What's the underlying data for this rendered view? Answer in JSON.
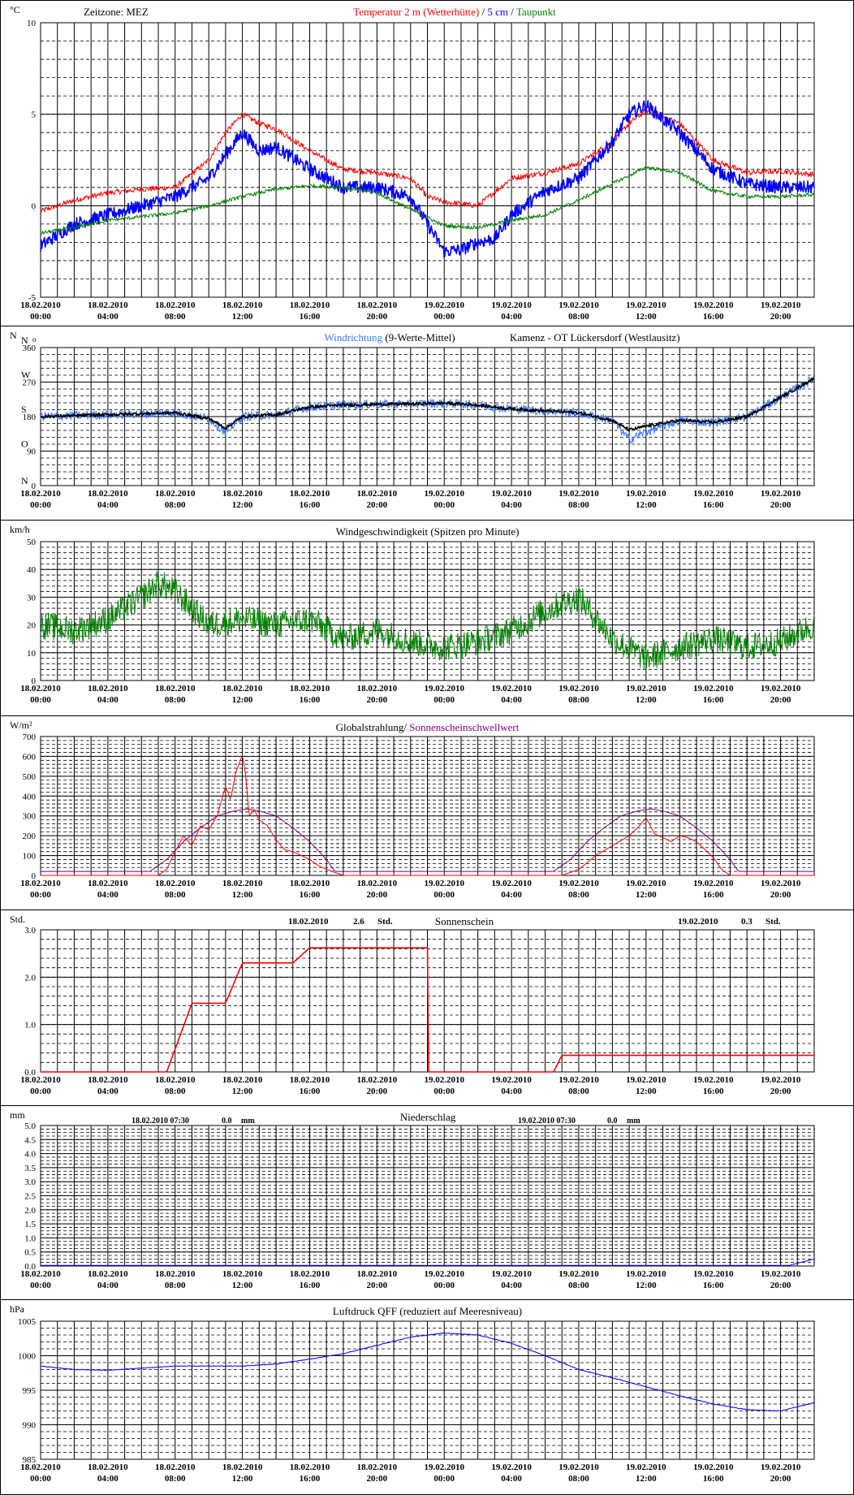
{
  "colors": {
    "red": "#ff0000",
    "blue": "#0000ff",
    "lightblue": "#3a78ff",
    "green": "#008000",
    "purple": "#800080",
    "black": "#000000"
  },
  "x_ticks": [
    {
      "d": "18.02.2010",
      "t": "00:00"
    },
    {
      "d": "18.02.2010",
      "t": "04:00"
    },
    {
      "d": "18.02.2010",
      "t": "08:00"
    },
    {
      "d": "18.02.2010",
      "t": "12:00"
    },
    {
      "d": "18.02.2010",
      "t": "16:00"
    },
    {
      "d": "18.02.2010",
      "t": "20:00"
    },
    {
      "d": "19.02.2010",
      "t": "00:00"
    },
    {
      "d": "19.02.2010",
      "t": "04:00"
    },
    {
      "d": "19.02.2010",
      "t": "08:00"
    },
    {
      "d": "19.02.2010",
      "t": "12:00"
    },
    {
      "d": "19.02.2010",
      "t": "16:00"
    },
    {
      "d": "19.02.2010",
      "t": "20:00"
    }
  ],
  "chart_data": [
    {
      "type": "line",
      "unit": "°C",
      "zone": "Zeitzone: MEZ",
      "title_parts": [
        {
          "text": "Temperatur 2 m (Wetterhütte)",
          "color": "#ff0000"
        },
        {
          "text": " / ",
          "color": "#000000"
        },
        {
          "text": "5 cm",
          "color": "#0000ff"
        },
        {
          "text": " / ",
          "color": "#000000"
        },
        {
          "text": "Taupunkt",
          "color": "#008000"
        }
      ],
      "ylim": [
        -5,
        10
      ],
      "y_ticks": [
        "10",
        "5",
        "0",
        "-5"
      ],
      "y_tick_values": [
        10,
        5,
        0,
        -5
      ],
      "x_hours": [
        0,
        46
      ],
      "series": [
        {
          "key": "t2m",
          "color": "#ff0000",
          "noise": 0.15,
          "x": [
            0,
            2,
            4,
            6,
            8,
            10,
            11,
            12,
            13,
            14,
            16,
            18,
            20,
            22,
            23,
            24,
            26,
            28,
            30,
            32,
            34,
            35,
            36,
            38,
            40,
            42,
            44,
            46
          ],
          "y": [
            -0.3,
            0.3,
            0.7,
            0.9,
            1.0,
            2.5,
            4.0,
            5.0,
            4.5,
            4.2,
            3.0,
            2.0,
            1.8,
            1.5,
            0.5,
            0.2,
            0.0,
            1.5,
            1.8,
            2.3,
            3.5,
            4.5,
            5.2,
            4.5,
            2.5,
            1.8,
            1.9,
            1.7
          ]
        },
        {
          "key": "t5cm",
          "color": "#0000ff",
          "noise": 0.35,
          "x": [
            0,
            2,
            4,
            6,
            8,
            10,
            11,
            12,
            13,
            14,
            16,
            18,
            20,
            22,
            23,
            24,
            25,
            26,
            27,
            28,
            30,
            32,
            34,
            35,
            36,
            38,
            40,
            42,
            44,
            46
          ],
          "y": [
            -2.2,
            -1.0,
            -0.5,
            0.0,
            0.5,
            1.5,
            2.8,
            4.0,
            3.0,
            3.2,
            2.0,
            1.0,
            1.0,
            0.5,
            -1.0,
            -2.5,
            -2.4,
            -2.0,
            -1.8,
            -0.5,
            0.8,
            1.5,
            3.5,
            5.0,
            5.5,
            4.0,
            2.0,
            1.2,
            1.0,
            1.0
          ]
        },
        {
          "key": "dew",
          "color": "#008000",
          "noise": 0.1,
          "x": [
            0,
            2,
            4,
            6,
            8,
            10,
            12,
            14,
            16,
            18,
            20,
            22,
            24,
            26,
            28,
            30,
            32,
            34,
            36,
            38,
            40,
            42,
            44,
            46
          ],
          "y": [
            -1.5,
            -1.2,
            -0.8,
            -0.6,
            -0.4,
            0.0,
            0.5,
            0.9,
            1.1,
            1.0,
            0.7,
            -0.2,
            -1.1,
            -1.2,
            -0.8,
            -0.5,
            0.3,
            1.2,
            2.1,
            1.8,
            0.8,
            0.5,
            0.5,
            0.6
          ]
        }
      ]
    },
    {
      "type": "line",
      "unit": "N",
      "title_parts": [
        {
          "text": "Windrichtung",
          "color": "#3a78ff"
        },
        {
          "text": " (9-Werte-Mittel)",
          "color": "#000000"
        }
      ],
      "station": "Kamenz - OT Lückersdorf (Westlausitz)",
      "ylim": [
        0,
        360
      ],
      "y_ticks": [
        "360",
        "270",
        "180",
        "90",
        "0"
      ],
      "y_tick_values": [
        360,
        270,
        180,
        90,
        0
      ],
      "dir_labels": [
        {
          "v": 360,
          "l": "N"
        },
        {
          "v": 270,
          "l": "W"
        },
        {
          "v": 180,
          "l": "S"
        },
        {
          "v": 90,
          "l": "O"
        },
        {
          "v": 0,
          "l": "N"
        }
      ],
      "x_hours": [
        0,
        46
      ],
      "series": [
        {
          "key": "dir_raw",
          "color": "#3a78ff",
          "noise": 12,
          "x": [
            0,
            4,
            8,
            10,
            11,
            12,
            14,
            16,
            18,
            20,
            22,
            24,
            26,
            28,
            30,
            32,
            34,
            35,
            36,
            38,
            40,
            42,
            44,
            46
          ],
          "y": [
            180,
            185,
            190,
            175,
            140,
            180,
            185,
            205,
            210,
            212,
            213,
            215,
            210,
            200,
            195,
            190,
            170,
            120,
            140,
            170,
            165,
            180,
            230,
            280
          ]
        },
        {
          "key": "dir_avg",
          "color": "#000000",
          "noise": 4,
          "x": [
            0,
            4,
            8,
            10,
            11,
            12,
            14,
            16,
            18,
            20,
            22,
            24,
            26,
            28,
            30,
            32,
            34,
            35,
            36,
            38,
            40,
            42,
            44,
            46
          ],
          "y": [
            180,
            185,
            190,
            175,
            150,
            180,
            185,
            205,
            210,
            212,
            213,
            215,
            210,
            200,
            195,
            190,
            170,
            145,
            155,
            170,
            165,
            180,
            230,
            280
          ]
        }
      ]
    },
    {
      "type": "line",
      "unit": "km/h",
      "title_parts": [
        {
          "text": "Windgeschwindigkeit (Spitzen pro Minute)",
          "color": "#000000"
        }
      ],
      "ylim": [
        0,
        50
      ],
      "y_ticks": [
        "50",
        "40",
        "30",
        "20",
        "10",
        "0"
      ],
      "y_tick_values": [
        50,
        40,
        30,
        20,
        10,
        0
      ],
      "x_hours": [
        0,
        46
      ],
      "series": [
        {
          "key": "gust",
          "color": "#008000",
          "noise": 5,
          "x": [
            0,
            2,
            4,
            6,
            7,
            8,
            10,
            12,
            14,
            16,
            18,
            20,
            22,
            24,
            26,
            28,
            30,
            32,
            34,
            36,
            38,
            40,
            42,
            44,
            46
          ],
          "y": [
            20,
            18,
            22,
            30,
            35,
            32,
            20,
            22,
            20,
            22,
            15,
            18,
            14,
            12,
            14,
            18,
            25,
            30,
            15,
            8,
            12,
            15,
            12,
            14,
            20
          ]
        }
      ]
    },
    {
      "type": "line",
      "unit": "W/m²",
      "title_parts": [
        {
          "text": "Globalstrahlung/ ",
          "color": "#000000"
        },
        {
          "text": "Sonnenscheinschwellwert",
          "color": "#800080"
        }
      ],
      "ylim": [
        0,
        700
      ],
      "y_ticks": [
        "700",
        "600",
        "500",
        "400",
        "300",
        "200",
        "100",
        "0"
      ],
      "y_tick_values": [
        700,
        600,
        500,
        400,
        300,
        200,
        100,
        0
      ],
      "x_hours": [
        0,
        46
      ],
      "series": [
        {
          "key": "threshold",
          "color": "#800080",
          "noise": 0,
          "x": [
            0,
            6.5,
            7.5,
            8.5,
            9.5,
            10.5,
            11.5,
            12.3,
            13,
            14,
            15,
            16,
            17,
            17.5,
            30.5,
            31.5,
            32.5,
            33.5,
            34.5,
            35.5,
            36.3,
            37,
            38,
            39,
            40,
            41,
            41.5,
            46
          ],
          "y": [
            20,
            20,
            80,
            170,
            240,
            300,
            325,
            335,
            325,
            300,
            240,
            170,
            80,
            20,
            20,
            80,
            170,
            240,
            300,
            325,
            335,
            325,
            300,
            240,
            170,
            80,
            20,
            20
          ]
        },
        {
          "key": "global",
          "color": "#ff0000",
          "noise": 0,
          "x": [
            0,
            7,
            7.5,
            8,
            8.5,
            9,
            9.5,
            10,
            10.5,
            11,
            11.3,
            11.6,
            11.8,
            12,
            12.2,
            12.4,
            12.7,
            13,
            13.5,
            14,
            14.5,
            15,
            15.5,
            16,
            16.5,
            17,
            18,
            31,
            32,
            33,
            34,
            35,
            35.5,
            36,
            36.5,
            37,
            37.5,
            38,
            38.5,
            39,
            40,
            40.5,
            41,
            46
          ],
          "y": [
            0,
            0,
            30,
            120,
            200,
            150,
            250,
            230,
            300,
            450,
            380,
            520,
            560,
            610,
            500,
            300,
            330,
            280,
            250,
            180,
            130,
            120,
            100,
            80,
            50,
            30,
            0,
            0,
            30,
            100,
            150,
            200,
            240,
            290,
            210,
            190,
            170,
            200,
            190,
            170,
            90,
            30,
            0,
            0
          ]
        }
      ]
    },
    {
      "type": "line",
      "unit": "Std.",
      "title_parts": [
        {
          "text": "Sonnenschein",
          "color": "#000000"
        }
      ],
      "sun_day1": {
        "date": "18.02.2010",
        "value": "2.6",
        "unit": "Std."
      },
      "sun_day2": {
        "date": "19.02.2010",
        "value": "0.3",
        "unit": "Std."
      },
      "ylim": [
        0,
        3
      ],
      "y_ticks": [
        "3.0",
        "2.0",
        "1.0",
        "0.0"
      ],
      "y_tick_values": [
        3,
        2,
        1,
        0
      ],
      "x_hours": [
        0,
        46
      ],
      "series": [
        {
          "key": "sunshine",
          "color": "#ff0000",
          "noise": 0,
          "x": [
            0,
            7.5,
            9,
            11,
            12,
            13,
            15,
            16,
            23,
            23.01,
            30.5,
            31,
            46
          ],
          "y": [
            0,
            0,
            1.45,
            1.45,
            2.3,
            2.3,
            2.3,
            2.62,
            2.62,
            0,
            0,
            0.35,
            0.35
          ]
        }
      ]
    },
    {
      "type": "line",
      "unit": "mm",
      "title_parts": [
        {
          "text": "Niederschlag",
          "color": "#000000"
        }
      ],
      "rain_day1": {
        "date": "18.02.2010 07:30",
        "value": "0.0",
        "unit": "mm"
      },
      "rain_day2": {
        "date": "19.02.2010 07:30",
        "value": "0.0",
        "unit": "mm"
      },
      "ylim": [
        0,
        5
      ],
      "y_ticks": [
        "5.0",
        "4.5",
        "4.0",
        "3.5",
        "3.0",
        "2.5",
        "2.0",
        "1.5",
        "1.0",
        "0.5",
        "0.0"
      ],
      "y_tick_values": [
        5,
        4.5,
        4,
        3.5,
        3,
        2.5,
        2,
        1.5,
        1,
        0.5,
        0
      ],
      "x_hours": [
        0,
        46
      ],
      "series": [
        {
          "key": "precip",
          "color": "#0000ff",
          "noise": 0,
          "x": [
            0,
            44.5,
            46
          ],
          "y": [
            0.02,
            0.02,
            0.25
          ]
        }
      ]
    },
    {
      "type": "line",
      "unit": "hPa",
      "title_parts": [
        {
          "text": "Luftdruck QFF (reduziert auf Meeresniveau)",
          "color": "#000000"
        }
      ],
      "ylim": [
        985,
        1005
      ],
      "y_ticks": [
        "1005",
        "1000",
        "995",
        "990",
        "985"
      ],
      "y_tick_values": [
        1005,
        1000,
        995,
        990,
        985
      ],
      "x_hours": [
        0,
        46
      ],
      "series": [
        {
          "key": "qff",
          "color": "#0000ff",
          "noise": 0.05,
          "x": [
            0,
            2,
            4,
            6,
            8,
            10,
            12,
            14,
            16,
            18,
            20,
            22,
            24,
            26,
            28,
            30,
            32,
            34,
            36,
            38,
            40,
            42,
            44,
            46
          ],
          "y": [
            998.5,
            998.0,
            997.9,
            998.2,
            998.5,
            998.5,
            998.5,
            998.8,
            999.5,
            1000.3,
            1001.5,
            1002.7,
            1003.3,
            1003.0,
            1001.8,
            1000.0,
            998.0,
            996.8,
            995.5,
            994.2,
            993.0,
            992.2,
            992.0,
            993.2
          ]
        }
      ]
    }
  ]
}
